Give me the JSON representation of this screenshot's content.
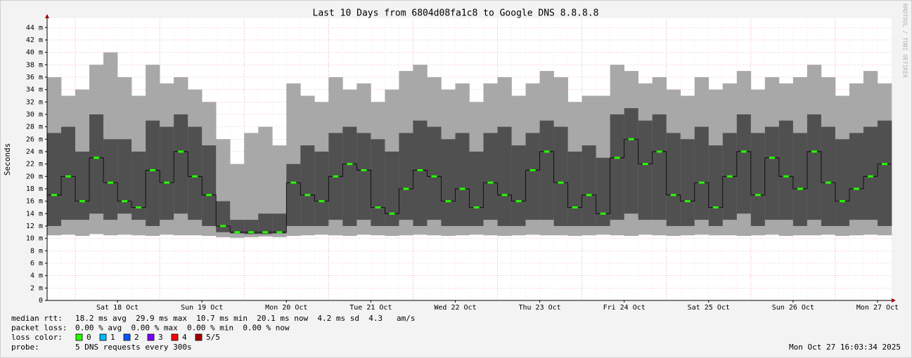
{
  "chart_data": {
    "type": "smoke",
    "title": "Last 10 Days from 6804d08fa1c8 to Google DNS 8.8.8.8",
    "y_label": "Seconds",
    "watermark": "RRDTOOL / TOBI OETIKER",
    "categories": [
      null,
      null,
      null,
      null,
      null,
      "Sat 18 Oct",
      null,
      null,
      null,
      null,
      null,
      "Sun 19 Oct",
      null,
      null,
      null,
      null,
      null,
      "Mon 20 Oct",
      null,
      null,
      null,
      null,
      null,
      "Tue 21 Oct",
      null,
      null,
      null,
      null,
      null,
      "Wed 22 Oct",
      null,
      null,
      null,
      null,
      null,
      "Thu 23 Oct",
      null,
      null,
      null,
      null,
      null,
      "Fri 24 Oct",
      null,
      null,
      null,
      null,
      null,
      "Sat 25 Oct",
      null,
      null,
      null,
      null,
      null,
      "Sun 26 Oct",
      null,
      null,
      null,
      null,
      null,
      "Mon 27 Oct"
    ],
    "ylim": [
      0,
      0.0455
    ],
    "yticks": [
      0,
      {
        "value": 0.002,
        "label": "2 m"
      },
      {
        "value": 0.004,
        "label": "4 m"
      },
      {
        "value": 0.006,
        "label": "6 m"
      },
      {
        "value": 0.008,
        "label": "8 m"
      },
      {
        "value": 0.01,
        "label": "10 m"
      },
      {
        "value": 0.012,
        "label": "12 m"
      },
      {
        "value": 0.014,
        "label": "14 m"
      },
      {
        "value": 0.016,
        "label": "16 m"
      },
      {
        "value": 0.018,
        "label": "18 m"
      },
      {
        "value": 0.02,
        "label": "20 m"
      },
      {
        "value": 0.022,
        "label": "22 m"
      },
      {
        "value": 0.024,
        "label": "24 m"
      },
      {
        "value": 0.026,
        "label": "26 m"
      },
      {
        "value": 0.028,
        "label": "28 m"
      },
      {
        "value": 0.03,
        "label": "30 m"
      },
      {
        "value": 0.032,
        "label": "32 m"
      },
      {
        "value": 0.034,
        "label": "34 m"
      },
      {
        "value": 0.036,
        "label": "36 m"
      },
      {
        "value": 0.038,
        "label": "38 m"
      },
      {
        "value": 0.04,
        "label": "40 m"
      },
      {
        "value": 0.042,
        "label": "42 m"
      },
      {
        "value": 0.044,
        "label": "44 m"
      }
    ],
    "grid": true,
    "smoke": {
      "color": "#a8a8a8",
      "min": [
        0.0105,
        0.0106,
        0.0104,
        0.0107,
        0.0105,
        0.0106,
        0.0105,
        0.0104,
        0.0106,
        0.0105,
        0.0105,
        0.0104,
        0.0102,
        0.0101,
        0.0102,
        0.0103,
        0.0102,
        0.0104,
        0.0105,
        0.0106,
        0.0105,
        0.0104,
        0.0106,
        0.0105,
        0.0104,
        0.0105,
        0.0106,
        0.0105,
        0.0104,
        0.0105,
        0.0106,
        0.0105,
        0.0104,
        0.0105,
        0.0106,
        0.0105,
        0.0105,
        0.0104,
        0.0105,
        0.0106,
        0.0105,
        0.0104,
        0.0106,
        0.0105,
        0.0104,
        0.0105,
        0.0106,
        0.0105,
        0.0105,
        0.0104,
        0.0105,
        0.0106,
        0.0104,
        0.0105,
        0.0105,
        0.0106,
        0.0104,
        0.0105,
        0.0106,
        0.0105
      ],
      "max": [
        0.036,
        0.033,
        0.034,
        0.038,
        0.04,
        0.036,
        0.033,
        0.038,
        0.035,
        0.036,
        0.034,
        0.032,
        0.026,
        0.022,
        0.027,
        0.028,
        0.025,
        0.035,
        0.033,
        0.032,
        0.036,
        0.034,
        0.035,
        0.032,
        0.034,
        0.037,
        0.038,
        0.036,
        0.034,
        0.035,
        0.032,
        0.035,
        0.036,
        0.033,
        0.035,
        0.037,
        0.036,
        0.032,
        0.033,
        0.033,
        0.038,
        0.037,
        0.035,
        0.036,
        0.034,
        0.033,
        0.036,
        0.034,
        0.035,
        0.037,
        0.034,
        0.036,
        0.035,
        0.036,
        0.038,
        0.036,
        0.033,
        0.035,
        0.037,
        0.035
      ]
    },
    "core": {
      "color": "#505050",
      "lo": [
        0.012,
        0.013,
        0.013,
        0.014,
        0.013,
        0.014,
        0.013,
        0.012,
        0.013,
        0.014,
        0.013,
        0.012,
        0.011,
        0.0108,
        0.0107,
        0.0107,
        0.0108,
        0.012,
        0.012,
        0.012,
        0.013,
        0.012,
        0.013,
        0.012,
        0.012,
        0.013,
        0.012,
        0.013,
        0.012,
        0.012,
        0.012,
        0.013,
        0.012,
        0.012,
        0.013,
        0.013,
        0.012,
        0.012,
        0.012,
        0.012,
        0.013,
        0.014,
        0.013,
        0.013,
        0.012,
        0.012,
        0.013,
        0.012,
        0.013,
        0.014,
        0.012,
        0.013,
        0.013,
        0.012,
        0.013,
        0.012,
        0.012,
        0.013,
        0.013,
        0.012
      ],
      "hi": [
        0.027,
        0.028,
        0.024,
        0.03,
        0.026,
        0.026,
        0.024,
        0.029,
        0.028,
        0.03,
        0.028,
        0.025,
        0.016,
        0.013,
        0.013,
        0.014,
        0.014,
        0.022,
        0.025,
        0.024,
        0.027,
        0.028,
        0.027,
        0.026,
        0.024,
        0.027,
        0.029,
        0.028,
        0.026,
        0.027,
        0.024,
        0.027,
        0.028,
        0.025,
        0.027,
        0.029,
        0.028,
        0.024,
        0.025,
        0.023,
        0.03,
        0.031,
        0.029,
        0.03,
        0.027,
        0.026,
        0.028,
        0.025,
        0.027,
        0.03,
        0.027,
        0.028,
        0.029,
        0.027,
        0.03,
        0.028,
        0.026,
        0.027,
        0.028,
        0.029
      ]
    },
    "median": {
      "color": "#26ff00",
      "values": [
        0.017,
        0.02,
        0.016,
        0.023,
        0.019,
        0.016,
        0.015,
        0.021,
        0.019,
        0.024,
        0.02,
        0.017,
        0.012,
        0.011,
        0.011,
        0.011,
        0.011,
        0.019,
        0.017,
        0.016,
        0.02,
        0.022,
        0.021,
        0.015,
        0.014,
        0.018,
        0.021,
        0.02,
        0.016,
        0.018,
        0.015,
        0.019,
        0.017,
        0.016,
        0.021,
        0.024,
        0.019,
        0.015,
        0.017,
        0.014,
        0.023,
        0.026,
        0.022,
        0.024,
        0.017,
        0.016,
        0.019,
        0.015,
        0.02,
        0.024,
        0.017,
        0.023,
        0.02,
        0.018,
        0.024,
        0.019,
        0.016,
        0.018,
        0.02,
        0.022
      ]
    },
    "stats": [
      {
        "label": "median rtt:",
        "text": "18.2 ms avg  29.9 ms max  10.7 ms min  20.1 ms now  4.2 ms sd  4.3   am/s"
      },
      {
        "label": "packet loss:",
        "text": "0.00 % avg  0.00 % max  0.00 % min  0.00 % now"
      }
    ],
    "loss_legend": {
      "label": "loss color:",
      "items": [
        {
          "name": "0",
          "color": "#26ff00"
        },
        {
          "name": "1",
          "color": "#00b8ff"
        },
        {
          "name": "2",
          "color": "#0059ff"
        },
        {
          "name": "3",
          "color": "#7e00ff"
        },
        {
          "name": "4",
          "color": "#ff0000"
        },
        {
          "name": "5/5",
          "color": "#a10000"
        }
      ]
    },
    "probe": {
      "label": "probe:",
      "text": "5 DNS requests every 300s"
    },
    "timestamp": "Mon Oct 27 16:03:34 2025"
  }
}
